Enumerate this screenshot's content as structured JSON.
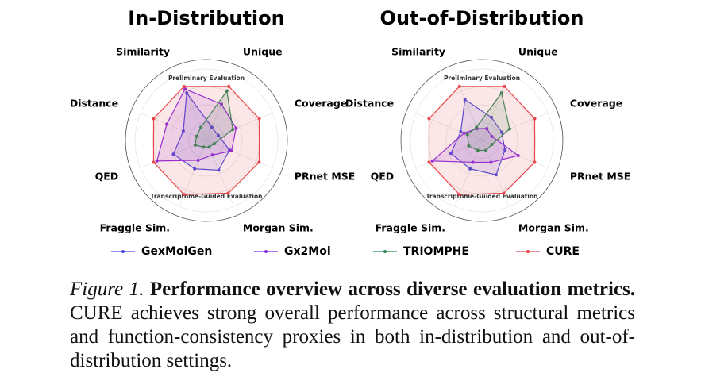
{
  "chart_data": [
    {
      "type": "radar",
      "title": "In-Distribution",
      "categories": [
        "Similarity",
        "Unique",
        "Coverage",
        "PRnet MSE",
        "Morgan Sim.",
        "Fraggle Sim.",
        "QED",
        "Distance"
      ],
      "groups": [
        "Preliminary Evaluation",
        "Transcriptome-Guided Evaluation"
      ],
      "rlim": [
        0,
        1
      ],
      "series": [
        {
          "name": "GexMolGen",
          "color": "#4a4ae0",
          "values": [
            0.72,
            0.2,
            0.18,
            0.35,
            0.45,
            0.43,
            0.5,
            0.35
          ]
        },
        {
          "name": "Gx2Mol",
          "color": "#8a2be2",
          "values": [
            0.78,
            0.55,
            0.45,
            0.38,
            0.22,
            0.3,
            0.75,
            0.6
          ]
        },
        {
          "name": "TRIOMPHE",
          "color": "#2e8b57",
          "values": [
            0.2,
            0.75,
            0.4,
            0.12,
            0.1,
            0.1,
            0.17,
            0.15
          ]
        },
        {
          "name": "CURE",
          "color": "#e8474c",
          "values": [
            0.82,
            0.82,
            0.8,
            0.8,
            0.8,
            0.82,
            0.8,
            0.8
          ]
        }
      ]
    },
    {
      "type": "radar",
      "title": "Out-of-Distribution",
      "categories": [
        "Similarity",
        "Unique",
        "Coverage",
        "PRnet MSE",
        "Morgan Sim.",
        "Fraggle Sim.",
        "QED",
        "Distance"
      ],
      "groups": [
        "Preliminary Evaluation",
        "Transcriptome-Guided Evaluation"
      ],
      "rlim": [
        0,
        1
      ],
      "series": [
        {
          "name": "GexMolGen",
          "color": "#4a4ae0",
          "values": [
            0.62,
            0.35,
            0.3,
            0.35,
            0.52,
            0.43,
            0.47,
            0.32
          ]
        },
        {
          "name": "Gx2Mol",
          "color": "#8a2be2",
          "values": [
            0.18,
            0.18,
            0.15,
            0.55,
            0.33,
            0.33,
            0.75,
            0.27
          ]
        },
        {
          "name": "TRIOMPHE",
          "color": "#2e8b57",
          "values": [
            0.2,
            0.72,
            0.42,
            0.15,
            0.15,
            0.15,
            0.2,
            0.22
          ]
        },
        {
          "name": "CURE",
          "color": "#e8474c",
          "values": [
            0.82,
            0.82,
            0.8,
            0.8,
            0.8,
            0.82,
            0.8,
            0.8
          ]
        }
      ]
    }
  ],
  "caption": {
    "label": "Figure 1.",
    "heading": "Performance overview across diverse evaluation metrics.",
    "text": "CURE achieves strong overall performance across structural metrics and function-consistency proxies in both in-distribution and out-of-distribution settings."
  }
}
